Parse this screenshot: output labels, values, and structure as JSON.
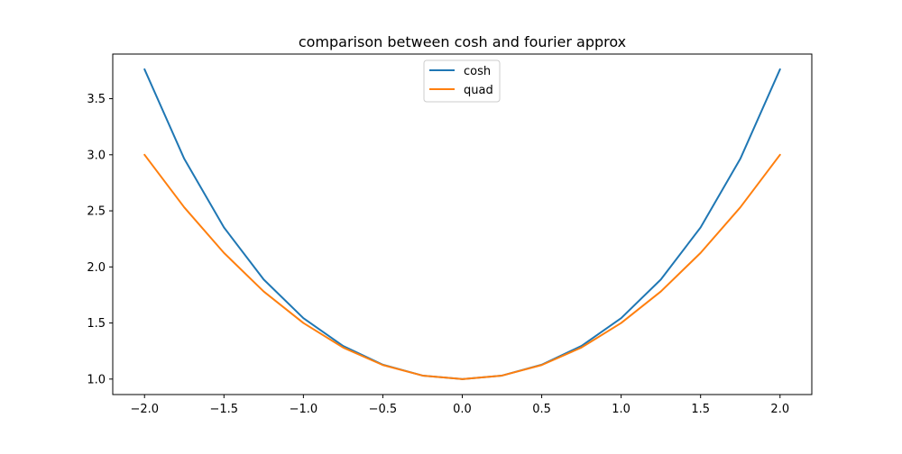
{
  "chart_data": {
    "type": "line",
    "title": "comparison between cosh and fourier approx",
    "xlabel": "",
    "ylabel": "",
    "xlim": [
      -2.2,
      2.2
    ],
    "ylim": [
      0.862,
      3.898
    ],
    "xticks": [
      -2.0,
      -1.5,
      -1.0,
      -0.5,
      0.0,
      0.5,
      1.0,
      1.5,
      2.0
    ],
    "xtick_labels": [
      "−2.0",
      "−1.5",
      "−1.0",
      "−0.5",
      "0.0",
      "0.5",
      "1.0",
      "1.5",
      "2.0"
    ],
    "yticks": [
      1.0,
      1.5,
      2.0,
      2.5,
      3.0,
      3.5
    ],
    "ytick_labels": [
      "1.0",
      "1.5",
      "2.0",
      "2.5",
      "3.0",
      "3.5"
    ],
    "grid": false,
    "legend_position": "top-center",
    "x": [
      -2.0,
      -1.75,
      -1.5,
      -1.25,
      -1.0,
      -0.75,
      -0.5,
      -0.25,
      0.0,
      0.25,
      0.5,
      0.75,
      1.0,
      1.25,
      1.5,
      1.75,
      2.0
    ],
    "series": [
      {
        "name": "cosh",
        "color": "#1f77b4",
        "values": [
          3.762,
          2.964,
          2.352,
          1.888,
          1.543,
          1.295,
          1.128,
          1.031,
          1.0,
          1.031,
          1.128,
          1.295,
          1.543,
          1.888,
          2.352,
          2.964,
          3.762
        ]
      },
      {
        "name": "quad",
        "color": "#ff7f0e",
        "values": [
          3.0,
          2.531,
          2.125,
          1.781,
          1.5,
          1.281,
          1.125,
          1.031,
          1.0,
          1.031,
          1.125,
          1.281,
          1.5,
          1.781,
          2.125,
          2.531,
          3.0
        ]
      }
    ]
  }
}
